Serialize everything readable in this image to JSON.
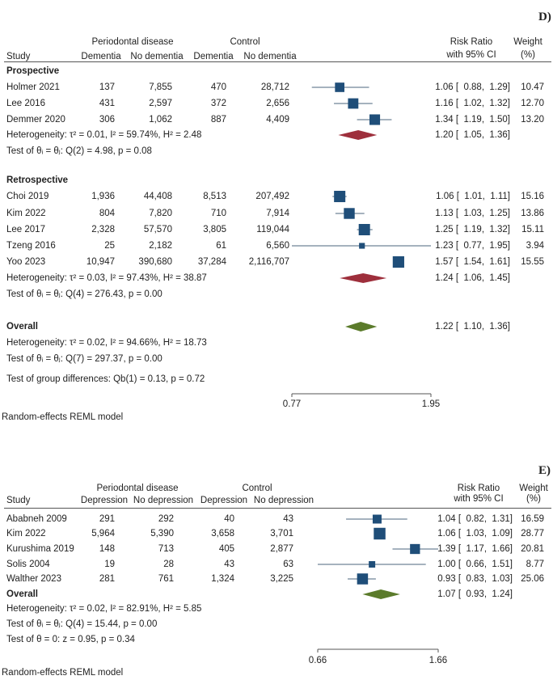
{
  "chart_data": [
    {
      "type": "forest",
      "panel_label": "D)",
      "header": {
        "group1": "Periodontal disease",
        "group2": "Control",
        "study": "Study",
        "c1": "Dementia",
        "c2": "No dementia",
        "c3": "Dementia",
        "c4": "No dementia",
        "rr1": "Risk Ratio",
        "rr2": "with 95% CI",
        "w1": "Weight",
        "w2": "(%)"
      },
      "rows": [
        {
          "kind": "group",
          "label": "Prospective"
        },
        {
          "kind": "study",
          "label": "Holmer 2021",
          "n": [
            "137",
            "7,855",
            "470",
            "28,712"
          ],
          "rr": 1.06,
          "lo": 0.88,
          "hi": 1.29,
          "ci_text": "1.06 [  0.88,  1.29]",
          "weight": 10.47,
          "weight_text": "10.47"
        },
        {
          "kind": "study",
          "label": "Lee 2016",
          "n": [
            "431",
            "2,597",
            "372",
            "2,656"
          ],
          "rr": 1.16,
          "lo": 1.02,
          "hi": 1.32,
          "ci_text": "1.16 [  1.02,  1.32]",
          "weight": 12.7,
          "weight_text": "12.70"
        },
        {
          "kind": "study",
          "label": "Demmer 2020",
          "n": [
            "306",
            "1,062",
            "887",
            "4,409"
          ],
          "rr": 1.34,
          "lo": 1.19,
          "hi": 1.5,
          "ci_text": "1.34 [  1.19,  1.50]",
          "weight": 13.2,
          "weight_text": "13.20"
        },
        {
          "kind": "stat",
          "label": "Heterogeneity: τ² = 0.01, I² = 59.74%, H² = 2.48",
          "rr": 1.2,
          "lo": 1.05,
          "hi": 1.36,
          "ci_text": "1.20 [  1.05,  1.36]",
          "diamond": "#9e2f3c"
        },
        {
          "kind": "stat",
          "label": "Test of θᵢ = θⱼ: Q(2) = 4.98, p = 0.08"
        },
        {
          "kind": "group",
          "label": "Retrospective"
        },
        {
          "kind": "study",
          "label": "Choi 2019",
          "n": [
            "1,936",
            "44,408",
            "8,513",
            "207,492"
          ],
          "rr": 1.06,
          "lo": 1.01,
          "hi": 1.11,
          "ci_text": "1.06 [  1.01,  1.11]",
          "weight": 15.16,
          "weight_text": "15.16"
        },
        {
          "kind": "study",
          "label": "Kim 2022",
          "n": [
            "804",
            "7,820",
            "710",
            "7,914"
          ],
          "rr": 1.13,
          "lo": 1.03,
          "hi": 1.25,
          "ci_text": "1.13 [  1.03,  1.25]",
          "weight": 13.86,
          "weight_text": "13.86"
        },
        {
          "kind": "study",
          "label": "Lee 2017",
          "n": [
            "2,328",
            "57,570",
            "3,805",
            "119,044"
          ],
          "rr": 1.25,
          "lo": 1.19,
          "hi": 1.32,
          "ci_text": "1.25 [  1.19,  1.32]",
          "weight": 15.11,
          "weight_text": "15.11"
        },
        {
          "kind": "study",
          "label": "Tzeng 2016",
          "n": [
            "25",
            "2,182",
            "61",
            "6,560"
          ],
          "rr": 1.23,
          "lo": 0.77,
          "hi": 1.95,
          "ci_text": "1.23 [  0.77,  1.95]",
          "weight": 3.94,
          "weight_text": "3.94"
        },
        {
          "kind": "study",
          "label": "Yoo 2023",
          "n": [
            "10,947",
            "390,680",
            "37,284",
            "2,116,707"
          ],
          "rr": 1.57,
          "lo": 1.54,
          "hi": 1.61,
          "ci_text": "1.57 [  1.54,  1.61]",
          "weight": 15.55,
          "weight_text": "15.55"
        },
        {
          "kind": "stat",
          "label": "Heterogeneity: τ² = 0.03, I² = 97.43%, H² = 38.87",
          "rr": 1.24,
          "lo": 1.06,
          "hi": 1.45,
          "ci_text": "1.24 [  1.06,  1.45]",
          "diamond": "#9e2f3c"
        },
        {
          "kind": "stat",
          "label": "Test of θᵢ = θⱼ: Q(4) = 276.43, p = 0.00"
        },
        {
          "kind": "group",
          "label": "Overall",
          "rr": 1.22,
          "lo": 1.1,
          "hi": 1.36,
          "ci_text": "1.22 [  1.10,  1.36]",
          "diamond": "#5b7b2b"
        },
        {
          "kind": "stat",
          "label": "Heterogeneity: τ² = 0.02, I² = 94.66%, H² = 18.73"
        },
        {
          "kind": "stat",
          "label": "Test of θᵢ = θⱼ: Q(7) = 297.37, p = 0.00"
        },
        {
          "kind": "stat",
          "label": "Test of group differences: Qb(1) = 0.13, p = 0.72"
        }
      ],
      "x_scale": "log",
      "xlim": [
        0.77,
        1.95
      ],
      "xticks": [
        {
          "v": 0.77,
          "label": "0.77"
        },
        {
          "v": 1.95,
          "label": "1.95"
        }
      ],
      "note": "Random-effects REML model"
    },
    {
      "type": "forest",
      "panel_label": "E)",
      "header": {
        "group1": "Periodontal disease",
        "group2": "Control",
        "study": "Study",
        "c1": "Depression",
        "c2": "No depression",
        "c3": "Depression",
        "c4": "No depression",
        "rr1": "Risk Ratio",
        "rr2": "with 95% CI",
        "w1": "Weight",
        "w2": "(%)"
      },
      "rows": [
        {
          "kind": "study",
          "label": "Ababneh 2009",
          "n": [
            "291",
            "292",
            "40",
            "43"
          ],
          "rr": 1.04,
          "lo": 0.82,
          "hi": 1.31,
          "ci_text": "1.04 [  0.82,  1.31]",
          "weight": 16.59,
          "weight_text": "16.59"
        },
        {
          "kind": "study",
          "label": "Kim 2022",
          "n": [
            "5,964",
            "5,390",
            "3,658",
            "3,701"
          ],
          "rr": 1.06,
          "lo": 1.03,
          "hi": 1.09,
          "ci_text": "1.06 [  1.03,  1.09]",
          "weight": 28.77,
          "weight_text": "28.77"
        },
        {
          "kind": "study",
          "label": "Kurushima 2019",
          "n": [
            "148",
            "713",
            "405",
            "2,877"
          ],
          "rr": 1.39,
          "lo": 1.17,
          "hi": 1.66,
          "ci_text": "1.39 [  1.17,  1.66]",
          "weight": 20.81,
          "weight_text": "20.81"
        },
        {
          "kind": "study",
          "label": "Solis 2004",
          "n": [
            "19",
            "28",
            "43",
            "63"
          ],
          "rr": 1.0,
          "lo": 0.66,
          "hi": 1.51,
          "ci_text": "1.00 [  0.66,  1.51]",
          "weight": 8.77,
          "weight_text": "8.77"
        },
        {
          "kind": "study",
          "label": "Walther 2023",
          "n": [
            "281",
            "761",
            "1,324",
            "3,225"
          ],
          "rr": 0.93,
          "lo": 0.83,
          "hi": 1.03,
          "ci_text": "0.93 [  0.83,  1.03]",
          "weight": 25.06,
          "weight_text": "25.06"
        },
        {
          "kind": "group",
          "label": "Overall",
          "rr": 1.07,
          "lo": 0.93,
          "hi": 1.24,
          "ci_text": "1.07 [  0.93,  1.24]",
          "diamond": "#5b7b2b"
        },
        {
          "kind": "stat",
          "label": "Heterogeneity: τ² = 0.02, I² = 82.91%, H² = 5.85"
        },
        {
          "kind": "stat",
          "label": "Test of θᵢ = θⱼ: Q(4) = 15.44, p = 0.00"
        },
        {
          "kind": "stat",
          "label": "Test of θ = 0: z = 0.95, p = 0.34"
        }
      ],
      "x_scale": "log",
      "xlim": [
        0.66,
        1.66
      ],
      "xticks": [
        {
          "v": 0.66,
          "label": "0.66"
        },
        {
          "v": 1.66,
          "label": "1.66"
        }
      ],
      "note": "Random-effects REML model"
    }
  ],
  "colors": {
    "square": "#1f4e79",
    "ci_line": "#6f8597",
    "axis": "#555555"
  }
}
